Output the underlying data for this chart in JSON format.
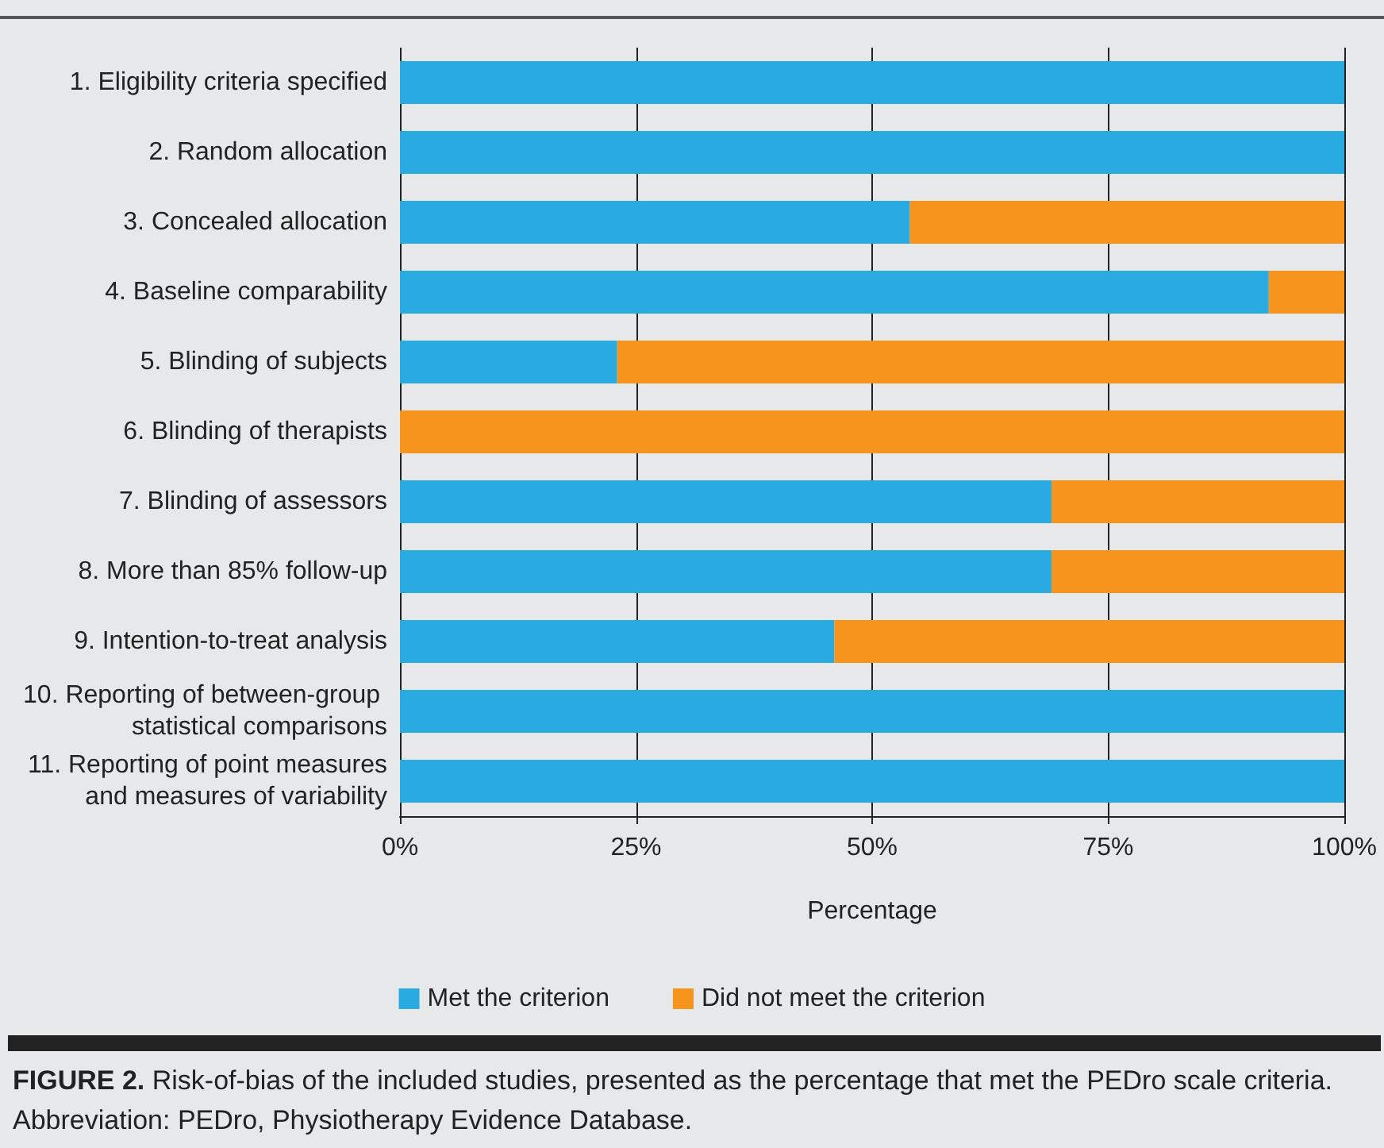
{
  "chart_data": {
    "type": "bar",
    "orientation": "horizontal",
    "stacked": true,
    "categories": [
      "1. Eligibility criteria specified",
      "2. Random allocation",
      "3. Concealed allocation",
      "4. Baseline comparability",
      "5. Blinding of subjects",
      "6. Blinding of therapists",
      "7. Blinding of assessors",
      "8. More than 85% follow-up",
      "9. Intention-to-treat analysis",
      "10. Reporting of between-group statistical comparisons",
      "11. Reporting of point measures and measures of variability"
    ],
    "series": [
      {
        "name": "Met the criterion",
        "color": "#29abe2",
        "values": [
          100,
          100,
          54,
          92,
          23,
          0,
          69,
          69,
          46,
          100,
          100
        ]
      },
      {
        "name": "Did not meet the criterion",
        "color": "#f7941d",
        "values": [
          0,
          0,
          46,
          8,
          77,
          100,
          31,
          31,
          54,
          0,
          0
        ]
      }
    ],
    "xlim": [
      0,
      100
    ],
    "xticks": [
      {
        "value": 0,
        "label": "0%"
      },
      {
        "value": 25,
        "label": "25%"
      },
      {
        "value": 50,
        "label": "50%"
      },
      {
        "value": 75,
        "label": "75%"
      },
      {
        "value": 100,
        "label": "100%"
      }
    ],
    "xlabel": "Percentage",
    "grid": "x",
    "legend": "bottom",
    "annotations": [
      "FIGURE 2. Risk-of-bias of the included studies, presented as the percentage that met the PEDro scale criteria. Abbreviation: PEDro, Physiotherapy Evidence Database."
    ]
  }
}
